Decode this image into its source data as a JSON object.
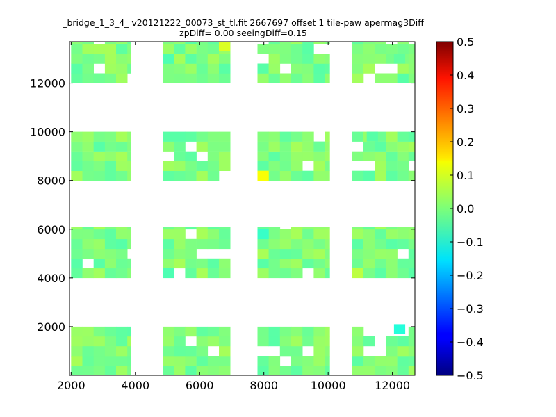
{
  "chart_data": {
    "type": "heatmap",
    "title": "_bridge_1_3_4_ v20121222_00073_st_tl.fit 2667697 offset 1 tile-paw apermag3Diff",
    "subtitle": "zpDiff= 0.00 seeingDiff=0.15",
    "xlabel": "",
    "ylabel": "",
    "xlim": [
      1950,
      12700
    ],
    "ylim": [
      0,
      13700
    ],
    "x_ticks": [
      2000,
      4000,
      6000,
      8000,
      10000,
      12000
    ],
    "y_ticks": [
      2000,
      4000,
      6000,
      8000,
      10000,
      12000
    ],
    "x_tick_labels": [
      "2000",
      "4000",
      "6000",
      "8000",
      "10000",
      "12000"
    ],
    "y_tick_labels": [
      "2000",
      "4000",
      "6000",
      "8000",
      "10000",
      "12000"
    ],
    "colorbar": {
      "min": -0.5,
      "max": 0.5,
      "colormap": "jet",
      "ticks": [
        0.5,
        0.4,
        0.3,
        0.2,
        0.1,
        0.0,
        -0.1,
        -0.2,
        -0.3,
        -0.4,
        -0.5
      ],
      "tick_labels": [
        "0.5",
        "0.4",
        "0.3",
        "0.2",
        "0.1",
        "0.0",
        "−0.1",
        "−0.2",
        "−0.3",
        "−0.4",
        "−0.5"
      ]
    },
    "cell_size": [
      350,
      400
    ],
    "tile_columns_x": [
      [
        2000,
        3850
      ],
      [
        4850,
        6950
      ],
      [
        7800,
        10050
      ],
      [
        10750,
        12700
      ]
    ],
    "tile_rows_y": [
      [
        0,
        2000
      ],
      [
        4000,
        6100
      ],
      [
        8000,
        10000
      ],
      [
        12000,
        13700
      ]
    ],
    "typical_value": 0.0,
    "highlighted_cells": [
      {
        "x": 7800,
        "y": 8000,
        "value": 0.12
      },
      {
        "x": 12050,
        "y": 1700,
        "value": -0.09
      },
      {
        "x": 6600,
        "y": 13300,
        "value": 0.09
      },
      {
        "x": 10750,
        "y": 4000,
        "value": 0.06
      },
      {
        "x": 7800,
        "y": 5600,
        "value": -0.07
      },
      {
        "x": 11200,
        "y": 9600,
        "value": -0.04
      },
      {
        "x": 4850,
        "y": 12800,
        "value": -0.05
      },
      {
        "x": 4850,
        "y": 4000,
        "value": -0.05
      },
      {
        "x": 12050,
        "y": 12800,
        "value": -0.03
      }
    ],
    "grid": false,
    "legend": "none"
  }
}
